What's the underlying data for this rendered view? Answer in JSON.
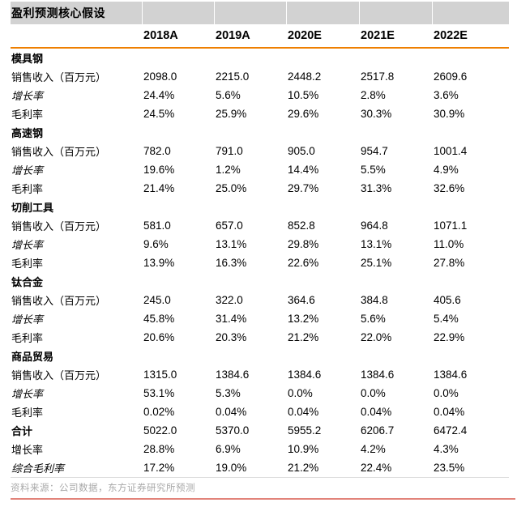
{
  "table": {
    "title": "盈利预测核心假设",
    "columns": [
      "2018A",
      "2019A",
      "2020E",
      "2021E",
      "2022E"
    ],
    "sections": [
      {
        "name": "模具钢",
        "values": null,
        "rows": [
          {
            "label": "销售收入（百万元）",
            "style": "normal",
            "values": [
              "2098.0",
              "2215.0",
              "2448.2",
              "2517.8",
              "2609.6"
            ]
          },
          {
            "label": "增长率",
            "style": "italic",
            "values": [
              "24.4%",
              "5.6%",
              "10.5%",
              "2.8%",
              "3.6%"
            ]
          },
          {
            "label": "毛利率",
            "style": "normal",
            "values": [
              "24.5%",
              "25.9%",
              "29.6%",
              "30.3%",
              "30.9%"
            ]
          }
        ]
      },
      {
        "name": "高速钢",
        "values": null,
        "rows": [
          {
            "label": "销售收入（百万元）",
            "style": "normal",
            "values": [
              "782.0",
              "791.0",
              "905.0",
              "954.7",
              "1001.4"
            ]
          },
          {
            "label": "增长率",
            "style": "italic",
            "values": [
              "19.6%",
              "1.2%",
              "14.4%",
              "5.5%",
              "4.9%"
            ]
          },
          {
            "label": "毛利率",
            "style": "normal",
            "values": [
              "21.4%",
              "25.0%",
              "29.7%",
              "31.3%",
              "32.6%"
            ]
          }
        ]
      },
      {
        "name": "切削工具",
        "values": null,
        "rows": [
          {
            "label": "销售收入（百万元）",
            "style": "normal",
            "values": [
              "581.0",
              "657.0",
              "852.8",
              "964.8",
              "1071.1"
            ]
          },
          {
            "label": "增长率",
            "style": "italic",
            "values": [
              "9.6%",
              "13.1%",
              "29.8%",
              "13.1%",
              "11.0%"
            ]
          },
          {
            "label": "毛利率",
            "style": "normal",
            "values": [
              "13.9%",
              "16.3%",
              "22.6%",
              "25.1%",
              "27.8%"
            ]
          }
        ]
      },
      {
        "name": "钛合金",
        "values": null,
        "rows": [
          {
            "label": "销售收入（百万元）",
            "style": "normal",
            "values": [
              "245.0",
              "322.0",
              "364.6",
              "384.8",
              "405.6"
            ]
          },
          {
            "label": "增长率",
            "style": "italic",
            "values": [
              "45.8%",
              "31.4%",
              "13.2%",
              "5.6%",
              "5.4%"
            ]
          },
          {
            "label": "毛利率",
            "style": "normal",
            "values": [
              "20.6%",
              "20.3%",
              "21.2%",
              "22.0%",
              "22.9%"
            ]
          }
        ]
      },
      {
        "name": "商品贸易",
        "values": null,
        "rows": [
          {
            "label": "销售收入（百万元）",
            "style": "normal",
            "values": [
              "1315.0",
              "1384.6",
              "1384.6",
              "1384.6",
              "1384.6"
            ]
          },
          {
            "label": "增长率",
            "style": "italic",
            "values": [
              "53.1%",
              "5.3%",
              "0.0%",
              "0.0%",
              "0.0%"
            ]
          },
          {
            "label": "毛利率",
            "style": "normal",
            "values": [
              "0.02%",
              "0.04%",
              "0.04%",
              "0.04%",
              "0.04%"
            ]
          }
        ]
      },
      {
        "name": "合计",
        "values": [
          "5022.0",
          "5370.0",
          "5955.2",
          "6206.7",
          "6472.4"
        ],
        "rows": [
          {
            "label": "增长率",
            "style": "normal",
            "values": [
              "28.8%",
              "6.9%",
              "10.9%",
              "4.2%",
              "4.3%"
            ]
          },
          {
            "label": "综合毛利率",
            "style": "italic",
            "values": [
              "17.2%",
              "19.0%",
              "21.2%",
              "22.4%",
              "23.5%"
            ]
          }
        ]
      }
    ]
  },
  "footer": {
    "source": "资料来源：公司数据，东方证券研究所预测"
  },
  "colors": {
    "title_bar_bg": "#D2D2D2",
    "accent_orange": "#EE7F00",
    "table_bottom_rule": "#DCDCDC",
    "footer_rule": "#E2837A",
    "footer_text": "#A8A8A8",
    "text": "#000000"
  }
}
